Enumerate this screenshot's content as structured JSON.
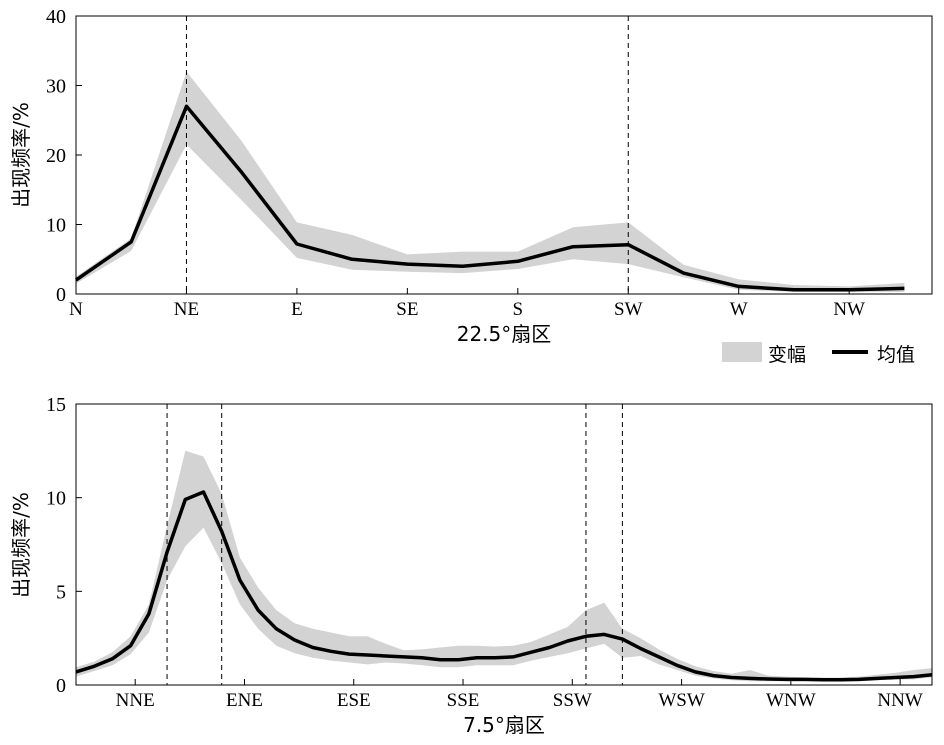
{
  "chart_data": [
    {
      "type": "line",
      "title": "",
      "ylabel": "出现频率/%",
      "xlabel": "22.5°扇区",
      "ylim": [
        0,
        40
      ],
      "yticks": [
        0,
        10,
        20,
        30,
        40
      ],
      "xlim": [
        0,
        15.5
      ],
      "xtick_labels": [
        "N",
        "NE",
        "E",
        "SE",
        "S",
        "SW",
        "W",
        "NW"
      ],
      "xtick_positions": [
        0,
        2,
        4,
        6,
        8,
        10,
        12,
        14
      ],
      "dashed_lines_x": [
        2,
        10
      ],
      "x": [
        0,
        1,
        2,
        3,
        4,
        5,
        6,
        7,
        8,
        9,
        10,
        11,
        12,
        13,
        14,
        15
      ],
      "series": [
        {
          "name": "均值",
          "role": "mean",
          "values": [
            2,
            7.5,
            27,
            17.5,
            7.2,
            5,
            4.3,
            4,
            4.7,
            6.8,
            7.1,
            3,
            1.1,
            0.6,
            0.6,
            0.8
          ]
        },
        {
          "role": "band_upper",
          "values": [
            2.5,
            8,
            32,
            22,
            10.3,
            8.5,
            5.7,
            6.1,
            6.1,
            9.6,
            10.3,
            4.2,
            2.1,
            1.3,
            1.1,
            1.6
          ]
        },
        {
          "role": "band_lower",
          "values": [
            1.5,
            6.2,
            21.5,
            13.5,
            5.2,
            3.5,
            3.2,
            3,
            3.6,
            5,
            4.3,
            2.4,
            0.6,
            0.3,
            0.3,
            0.3
          ]
        }
      ]
    },
    {
      "type": "line",
      "title": "",
      "ylabel": "出现频率/%",
      "xlabel": "7.5°扇区",
      "ylim": [
        0,
        15
      ],
      "yticks": [
        0,
        5,
        10,
        15
      ],
      "xlim": [
        0,
        47
      ],
      "xtick_labels": [
        "NNE",
        "ENE",
        "ESE",
        "SSE",
        "SSW",
        "WSW",
        "WNW",
        "NNW"
      ],
      "xtick_positions": [
        3.25,
        9.25,
        15.25,
        21.25,
        27.25,
        33.25,
        39.25,
        45.25
      ],
      "dashed_lines_x": [
        5,
        8,
        28,
        30
      ],
      "x": [
        0,
        1,
        2,
        3,
        4,
        5,
        6,
        7,
        8,
        9,
        10,
        11,
        12,
        13,
        14,
        15,
        16,
        17,
        18,
        19,
        20,
        21,
        22,
        23,
        24,
        25,
        26,
        27,
        28,
        29,
        30,
        31,
        32,
        33,
        34,
        35,
        36,
        37,
        38,
        39,
        40,
        41,
        42,
        43,
        44,
        45,
        46,
        47
      ],
      "series": [
        {
          "name": "均值",
          "role": "mean",
          "values": [
            0.7,
            1.0,
            1.4,
            2.1,
            3.8,
            7.1,
            9.9,
            10.3,
            8.2,
            5.6,
            4.0,
            3.0,
            2.4,
            2.0,
            1.8,
            1.65,
            1.6,
            1.55,
            1.5,
            1.45,
            1.35,
            1.35,
            1.45,
            1.45,
            1.5,
            1.75,
            2.0,
            2.35,
            2.6,
            2.7,
            2.45,
            1.95,
            1.5,
            1.05,
            0.7,
            0.5,
            0.4,
            0.35,
            0.32,
            0.3,
            0.3,
            0.28,
            0.28,
            0.3,
            0.35,
            0.4,
            0.45,
            0.55
          ]
        },
        {
          "role": "band_upper",
          "values": [
            0.95,
            1.25,
            1.75,
            2.6,
            4.3,
            8.5,
            12.5,
            12.2,
            10.2,
            6.8,
            5.2,
            4.0,
            3.3,
            3.0,
            2.8,
            2.6,
            2.6,
            2.2,
            1.85,
            1.9,
            2.0,
            2.1,
            2.1,
            2.05,
            2.1,
            2.3,
            2.7,
            3.1,
            4.0,
            4.4,
            3.0,
            2.5,
            1.9,
            1.4,
            1.0,
            0.75,
            0.6,
            0.8,
            0.5,
            0.45,
            0.4,
            0.4,
            0.4,
            0.45,
            0.55,
            0.65,
            0.8,
            0.9
          ]
        },
        {
          "role": "band_lower",
          "values": [
            0.45,
            0.75,
            1.05,
            1.65,
            2.8,
            5.6,
            7.4,
            8.4,
            6.5,
            4.3,
            3.0,
            2.1,
            1.7,
            1.45,
            1.3,
            1.2,
            1.1,
            1.2,
            1.15,
            1.05,
            0.95,
            0.95,
            1.05,
            1.05,
            1.05,
            1.3,
            1.5,
            1.7,
            1.95,
            2.2,
            1.45,
            1.55,
            1.1,
            0.8,
            0.5,
            0.35,
            0.25,
            0.2,
            0.2,
            0.2,
            0.2,
            0.2,
            0.18,
            0.2,
            0.25,
            0.3,
            0.3,
            0.4
          ]
        }
      ]
    }
  ],
  "legend": {
    "items": [
      {
        "label": "变幅",
        "kind": "band"
      },
      {
        "label": "均值",
        "kind": "line"
      }
    ],
    "band_color": "#d3d3d3",
    "line_color": "#000000"
  }
}
